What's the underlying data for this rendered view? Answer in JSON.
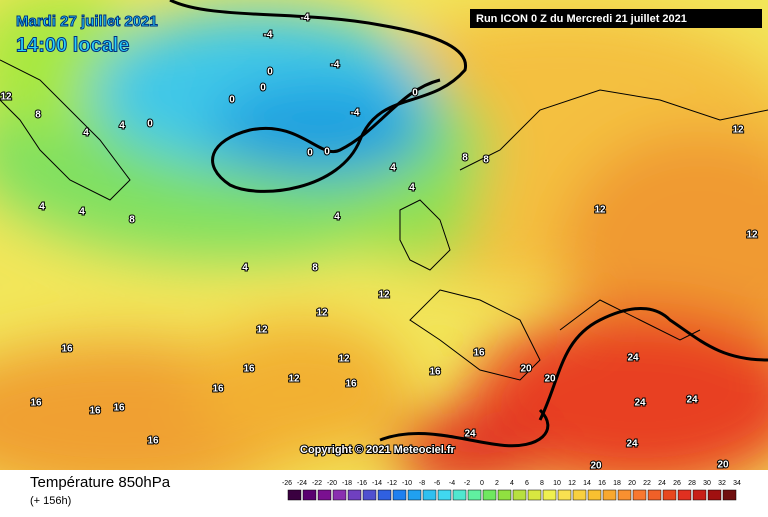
{
  "header": {
    "date": "Mardi 27 juillet 2021",
    "time": "14:00 locale",
    "run": "Run ICON 0 Z du Mercredi 21 juillet 2021"
  },
  "copyright": "Copyright © 2021 Meteociel.fr",
  "footer": {
    "title": "Température 850hPa",
    "lead": "(+ 156h)"
  },
  "legend": {
    "ticks": [
      -26,
      -24,
      -22,
      -20,
      -18,
      -16,
      -14,
      -12,
      -10,
      -8,
      -6,
      -4,
      -2,
      0,
      2,
      4,
      6,
      8,
      10,
      12,
      14,
      16,
      18,
      20,
      22,
      24,
      26,
      28,
      30,
      32,
      34
    ]
  },
  "map_labels": [
    -4,
    -4,
    -4,
    0,
    0,
    0,
    -4,
    0,
    0,
    4,
    4,
    8,
    12,
    0,
    0,
    4,
    8,
    8,
    4,
    4,
    4,
    8,
    8,
    4,
    4,
    12,
    12,
    12,
    16,
    16,
    16,
    12,
    12,
    16,
    16,
    16,
    12,
    12,
    12,
    20,
    20,
    24,
    24,
    24,
    24,
    24,
    20,
    20,
    16,
    16,
    16,
    16
  ]
}
